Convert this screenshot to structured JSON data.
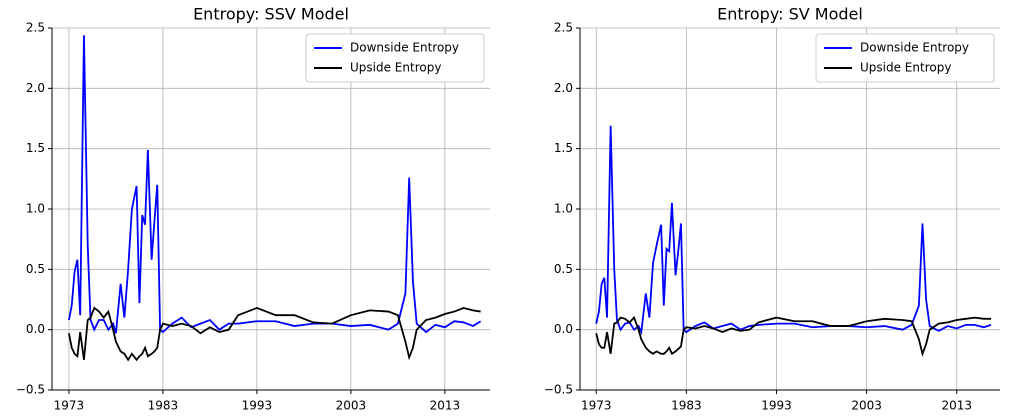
{
  "chart_data": [
    {
      "type": "line",
      "title": "Entropy: SSV Model",
      "x": [
        1973.0,
        1973.3,
        1973.6,
        1973.9,
        1974.2,
        1974.6,
        1975.0,
        1975.3,
        1975.7,
        1976.2,
        1976.7,
        1977.2,
        1977.7,
        1978.0,
        1978.5,
        1978.9,
        1979.3,
        1979.7,
        1980.2,
        1980.5,
        1980.8,
        1981.1,
        1981.4,
        1981.8,
        1982.1,
        1982.4,
        1982.7,
        1983.0,
        1984,
        1985,
        1986,
        1987,
        1988,
        1989,
        1990,
        1991,
        1993,
        1995,
        1997,
        1999,
        2001,
        2003,
        2005,
        2007,
        2008,
        2008.8,
        2009.2,
        2009.6,
        2010,
        2011,
        2012,
        2013,
        2014,
        2015,
        2016,
        2016.8
      ],
      "series": [
        {
          "name": "Downside Entropy",
          "color": "#0000ff",
          "values": [
            0.08,
            0.2,
            0.48,
            0.58,
            0.12,
            2.44,
            0.7,
            0.08,
            0.0,
            0.08,
            0.08,
            0.0,
            0.05,
            -0.03,
            0.38,
            0.1,
            0.5,
            1.0,
            1.19,
            0.22,
            0.95,
            0.87,
            1.49,
            0.58,
            0.9,
            1.2,
            0.0,
            -0.02,
            0.05,
            0.1,
            0.02,
            0.05,
            0.08,
            0.0,
            0.05,
            0.05,
            0.07,
            0.07,
            0.03,
            0.05,
            0.05,
            0.03,
            0.04,
            0.0,
            0.05,
            0.3,
            1.26,
            0.4,
            0.05,
            -0.02,
            0.04,
            0.02,
            0.07,
            0.06,
            0.03,
            0.07
          ]
        },
        {
          "name": "Upside Entropy",
          "color": "#000000",
          "values": [
            -0.03,
            -0.15,
            -0.2,
            -0.22,
            -0.02,
            -0.25,
            0.08,
            0.1,
            0.18,
            0.15,
            0.1,
            0.15,
            0.0,
            -0.1,
            -0.18,
            -0.2,
            -0.25,
            -0.2,
            -0.25,
            -0.22,
            -0.2,
            -0.15,
            -0.22,
            -0.2,
            -0.18,
            -0.15,
            0.0,
            0.05,
            0.03,
            0.05,
            0.03,
            -0.03,
            0.02,
            -0.02,
            0.0,
            0.12,
            0.18,
            0.12,
            0.12,
            0.06,
            0.05,
            0.12,
            0.16,
            0.15,
            0.12,
            -0.1,
            -0.23,
            -0.15,
            0.0,
            0.08,
            0.1,
            0.13,
            0.15,
            0.18,
            0.16,
            0.15
          ]
        }
      ],
      "xlim": [
        1971.2,
        2017.8
      ],
      "xticks": [
        1973,
        1983,
        1993,
        2003,
        2013
      ],
      "ylim": [
        -0.5,
        2.5
      ],
      "yticks": [
        {
          "value": -0.5,
          "label": "−0.5"
        },
        {
          "value": 0,
          "label": "0.0"
        },
        0.5,
        {
          "value": 1,
          "label": "1.0"
        },
        1.5,
        {
          "value": 2,
          "label": "2.0"
        },
        2.5
      ],
      "grid": true,
      "legend": "upper right"
    },
    {
      "type": "line",
      "title": "Entropy: SV Model",
      "x": [
        1973.0,
        1973.3,
        1973.6,
        1973.9,
        1974.2,
        1974.6,
        1975.0,
        1975.3,
        1975.7,
        1976.2,
        1976.7,
        1977.2,
        1977.7,
        1978.0,
        1978.5,
        1978.9,
        1979.3,
        1979.7,
        1980.2,
        1980.5,
        1980.8,
        1981.1,
        1981.4,
        1981.8,
        1982.1,
        1982.4,
        1982.7,
        1983.0,
        1984,
        1985,
        1986,
        1987,
        1988,
        1989,
        1990,
        1991,
        1993,
        1995,
        1997,
        1999,
        2001,
        2003,
        2005,
        2007,
        2008,
        2008.8,
        2009.2,
        2009.6,
        2010,
        2011,
        2012,
        2013,
        2014,
        2015,
        2016,
        2016.8
      ],
      "series": [
        {
          "name": "Downside Entropy",
          "color": "#0000ff",
          "values": [
            0.05,
            0.15,
            0.38,
            0.43,
            0.1,
            1.69,
            0.5,
            0.08,
            0.0,
            0.05,
            0.06,
            0.0,
            0.03,
            -0.02,
            0.3,
            0.1,
            0.55,
            0.7,
            0.87,
            0.2,
            0.67,
            0.65,
            1.05,
            0.45,
            0.65,
            0.88,
            0.0,
            -0.02,
            0.03,
            0.06,
            0.01,
            0.03,
            0.05,
            0.0,
            0.03,
            0.04,
            0.05,
            0.05,
            0.02,
            0.03,
            0.03,
            0.02,
            0.03,
            0.0,
            0.04,
            0.2,
            0.88,
            0.25,
            0.03,
            -0.01,
            0.03,
            0.01,
            0.04,
            0.04,
            0.02,
            0.04
          ]
        },
        {
          "name": "Upside Entropy",
          "color": "#000000",
          "values": [
            -0.03,
            -0.12,
            -0.15,
            -0.15,
            -0.02,
            -0.2,
            0.05,
            0.06,
            0.1,
            0.09,
            0.06,
            0.1,
            0.0,
            -0.08,
            -0.15,
            -0.18,
            -0.2,
            -0.18,
            -0.2,
            -0.2,
            -0.18,
            -0.15,
            -0.2,
            -0.18,
            -0.16,
            -0.14,
            0.0,
            0.02,
            0.01,
            0.03,
            0.01,
            -0.02,
            0.01,
            -0.01,
            0.0,
            0.06,
            0.1,
            0.07,
            0.07,
            0.03,
            0.03,
            0.07,
            0.09,
            0.08,
            0.07,
            -0.08,
            -0.2,
            -0.12,
            0.0,
            0.05,
            0.06,
            0.08,
            0.09,
            0.1,
            0.09,
            0.09
          ]
        }
      ],
      "xlim": [
        1971.2,
        2017.8
      ],
      "xticks": [
        1973,
        1983,
        1993,
        2003,
        2013
      ],
      "ylim": [
        -0.5,
        2.5
      ],
      "yticks": [
        {
          "value": -0.5,
          "label": "−0.5"
        },
        {
          "value": 0,
          "label": "0.0"
        },
        0.5,
        {
          "value": 1,
          "label": "1.0"
        },
        1.5,
        {
          "value": 2,
          "label": "2.0"
        },
        2.5
      ],
      "grid": true,
      "legend": "upper right"
    }
  ]
}
